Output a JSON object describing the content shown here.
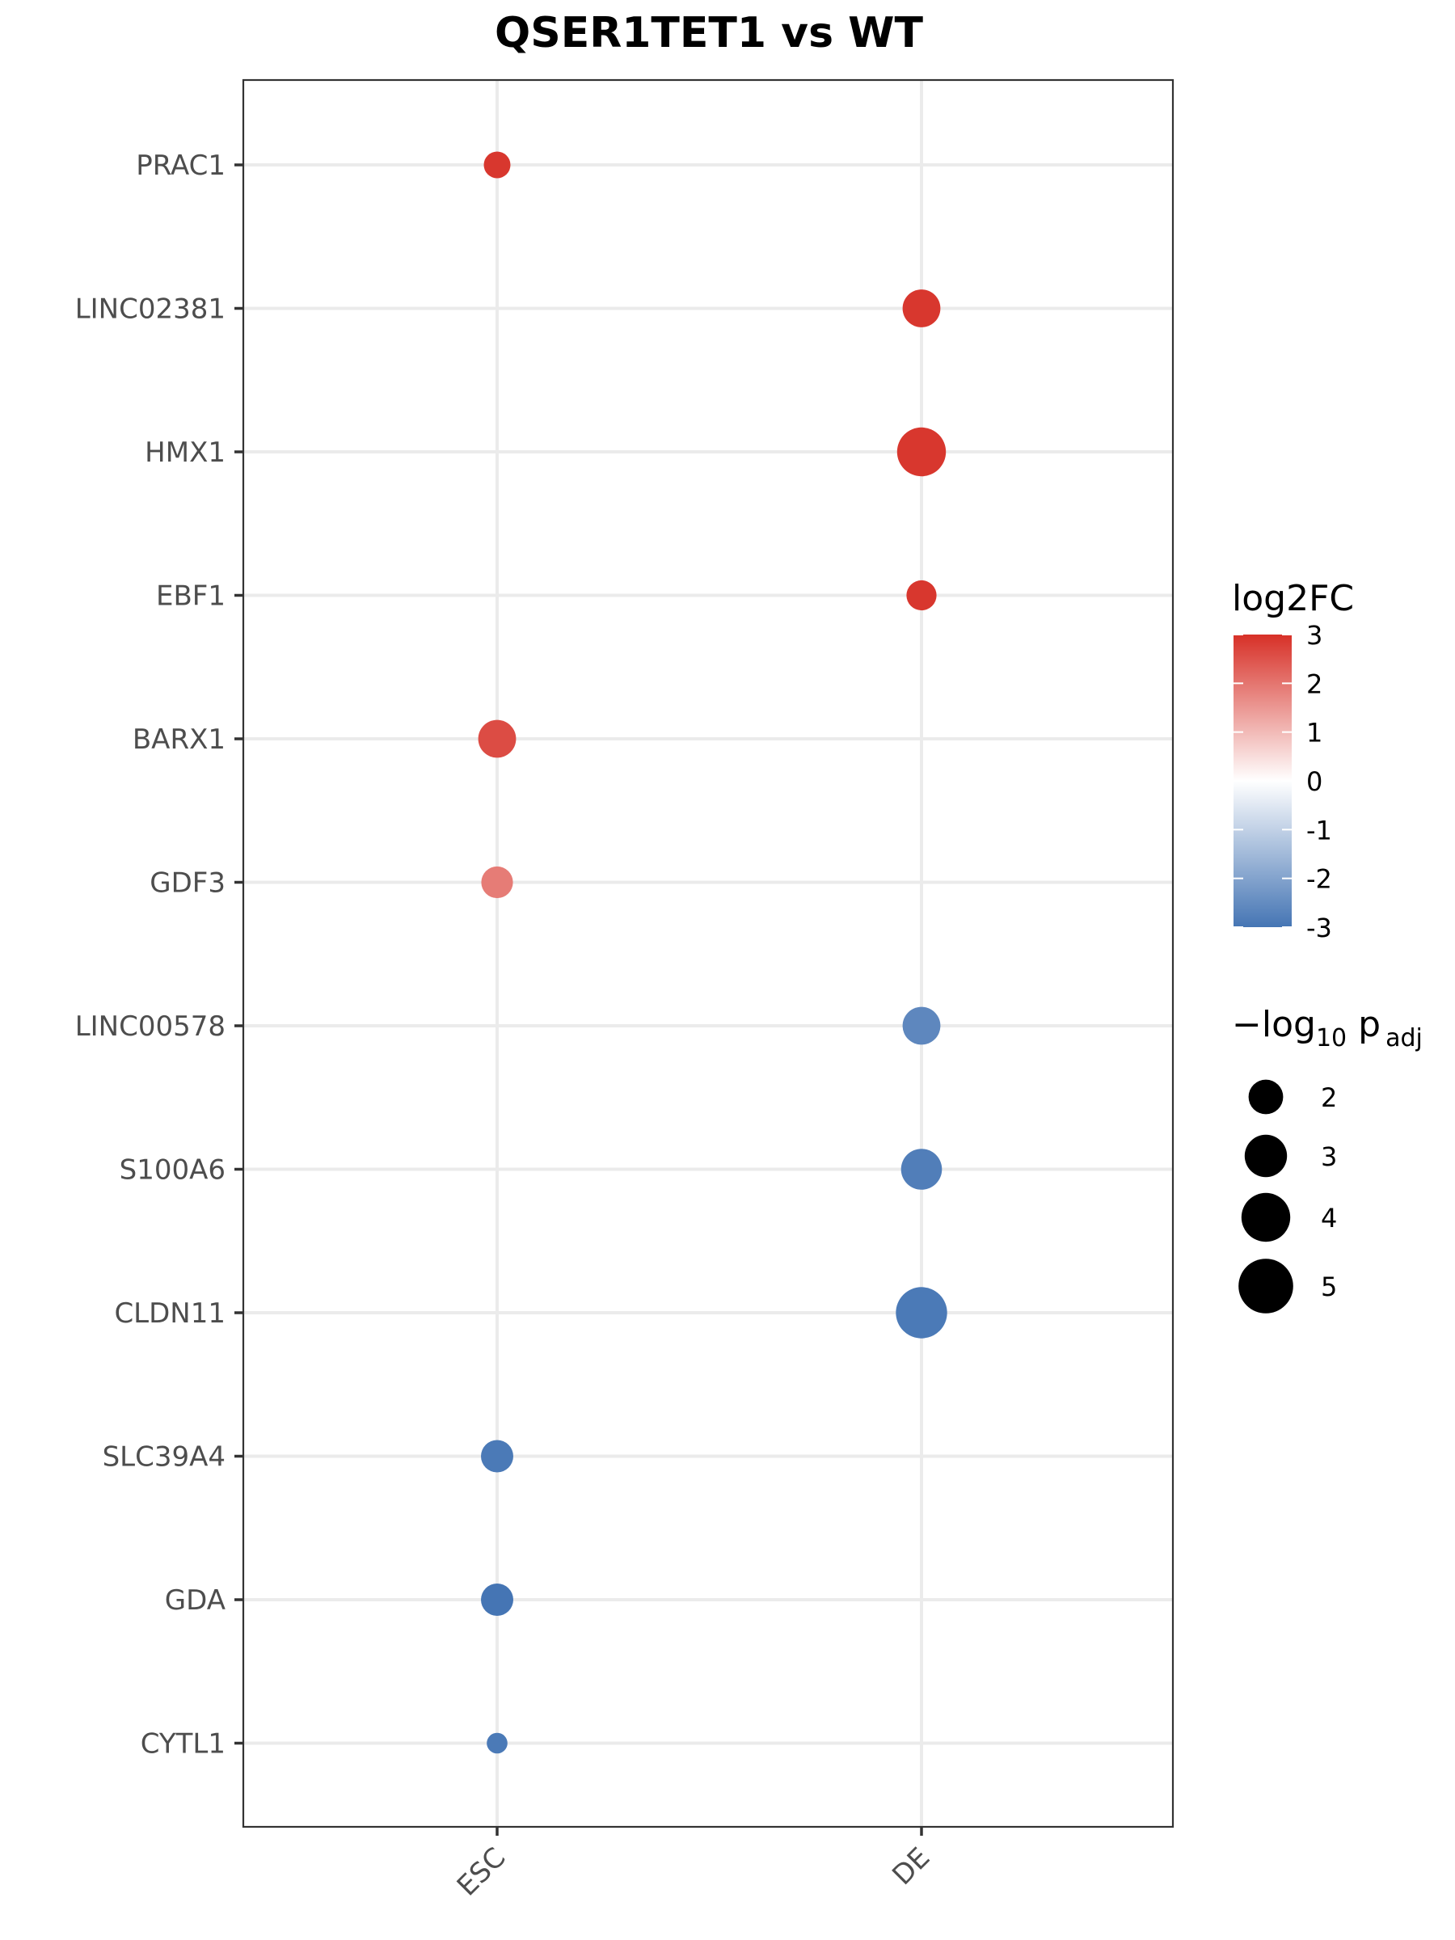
{
  "chart_data": {
    "type": "scatter",
    "title": "QSER1TET1 vs WT",
    "x_categories": [
      "ESC",
      "DE"
    ],
    "y_categories": [
      "PRAC1",
      "LINC02381",
      "HMX1",
      "EBF1",
      "BARX1",
      "GDF3",
      "LINC00578",
      "S100A6",
      "CLDN11",
      "SLC39A4",
      "GDA",
      "CYTL1"
    ],
    "points": [
      {
        "gene": "PRAC1",
        "condition": "ESC",
        "log2FC": 2.9,
        "neg_log10_padj": 1.5
      },
      {
        "gene": "LINC02381",
        "condition": "DE",
        "log2FC": 2.9,
        "neg_log10_padj": 3.0
      },
      {
        "gene": "HMX1",
        "condition": "DE",
        "log2FC": 2.9,
        "neg_log10_padj": 5.0
      },
      {
        "gene": "EBF1",
        "condition": "DE",
        "log2FC": 2.9,
        "neg_log10_padj": 1.9
      },
      {
        "gene": "BARX1",
        "condition": "ESC",
        "log2FC": 2.6,
        "neg_log10_padj": 3.0
      },
      {
        "gene": "GDF3",
        "condition": "ESC",
        "log2FC": 1.9,
        "neg_log10_padj": 2.1
      },
      {
        "gene": "LINC00578",
        "condition": "DE",
        "log2FC": -2.6,
        "neg_log10_padj": 3.0
      },
      {
        "gene": "S100A6",
        "condition": "DE",
        "log2FC": -2.8,
        "neg_log10_padj": 3.5
      },
      {
        "gene": "CLDN11",
        "condition": "DE",
        "log2FC": -2.9,
        "neg_log10_padj": 5.5
      },
      {
        "gene": "SLC39A4",
        "condition": "ESC",
        "log2FC": -2.9,
        "neg_log10_padj": 2.2
      },
      {
        "gene": "GDA",
        "condition": "ESC",
        "log2FC": -3.0,
        "neg_log10_padj": 2.2
      },
      {
        "gene": "CYTL1",
        "condition": "ESC",
        "log2FC": -2.9,
        "neg_log10_padj": 0.9
      }
    ],
    "color_legend": {
      "title": "log2FC",
      "ticks": [
        "3",
        "2",
        "1",
        "0",
        "-1",
        "-2",
        "-3"
      ],
      "range": [
        -3,
        3
      ],
      "high_color": "#d73027",
      "mid_color": "#ffffff",
      "low_color": "#4575b4"
    },
    "size_legend": {
      "title_main": "−log",
      "title_sub": "10",
      "title_p": " p",
      "title_adj": "adj",
      "entries": [
        {
          "label": "2",
          "value": 2
        },
        {
          "label": "3",
          "value": 3
        },
        {
          "label": "4",
          "value": 4
        },
        {
          "label": "5",
          "value": 5
        }
      ]
    },
    "grid": true,
    "legend_position": "right"
  }
}
